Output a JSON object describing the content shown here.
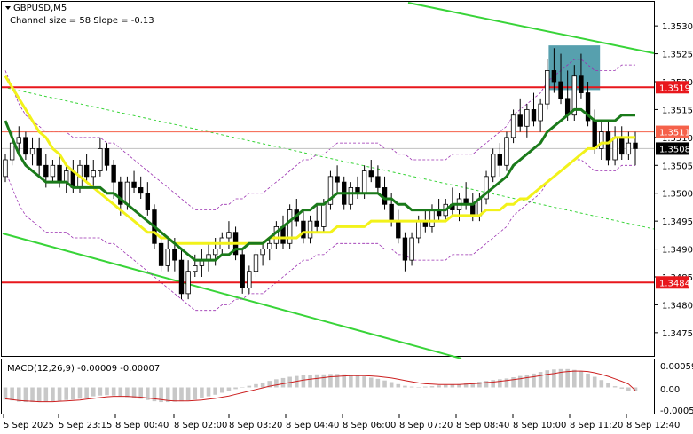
{
  "header": {
    "symbol_label": "GBPUSD,M5",
    "channel_info": "Channel size = 58 Slope = -0.13"
  },
  "macd": {
    "label": "MACD(12,26,9) -0.00009 -0.00007",
    "ticks": [
      "0.00059",
      "0.00",
      "-0.00059"
    ]
  },
  "price_axis": {
    "ticks": [
      "1.3530",
      "1.3525",
      "1.3520",
      "1.3515",
      "1.3510",
      "1.3505",
      "1.3500",
      "1.3495",
      "1.3490",
      "1.3485",
      "1.3480",
      "1.3475"
    ]
  },
  "time_axis": {
    "labels": [
      "5 Sep 2025",
      "5 Sep 23:15",
      "8 Sep 00:40",
      "8 Sep 02:00",
      "8 Sep 03:20",
      "8 Sep 04:40",
      "8 Sep 06:00",
      "8 Sep 07:20",
      "8 Sep 08:40",
      "8 Sep 10:00",
      "8 Sep 11:20",
      "8 Sep 12:40"
    ]
  },
  "level_tags": [
    {
      "id": "upper",
      "text": "1.3519",
      "color": "#e8171c"
    },
    {
      "id": "mid",
      "text": "1.3511",
      "color": "#f5614a"
    },
    {
      "id": "current",
      "text": "1.3508",
      "color": "#000000"
    },
    {
      "id": "lower",
      "text": "1.3484",
      "color": "#e8171c"
    }
  ],
  "colors": {
    "candle": "#000000",
    "ma_fast": "#1a7a1a",
    "ma_slow": "#f2f21a",
    "channel": "#38d438",
    "channel_mid": "#38d438",
    "envelope": "#9a2fb0",
    "level_red": "#e8171c",
    "level_orange": "#f5614a",
    "highlight": "#3a8fa0",
    "macd_hist": "#c8c8c8",
    "macd_signal": "#cc2020"
  },
  "chart_data": {
    "type": "candlestick",
    "symbol": "GBPUSD",
    "timeframe": "M5",
    "ylim": [
      1.3471,
      1.3534
    ],
    "levels": {
      "upper": 1.3519,
      "mid": 1.3511,
      "lower": 1.3484
    },
    "current_price": 1.3508,
    "candles": [
      [
        1.3503,
        1.3507,
        1.3502,
        1.3506
      ],
      [
        1.3506,
        1.3511,
        1.3505,
        1.3509
      ],
      [
        1.3509,
        1.3512,
        1.3507,
        1.351
      ],
      [
        1.351,
        1.3511,
        1.3506,
        1.3507
      ],
      [
        1.3507,
        1.351,
        1.3505,
        1.3508
      ],
      [
        1.3508,
        1.351,
        1.3503,
        1.3505
      ],
      [
        1.3505,
        1.3507,
        1.3501,
        1.3503
      ],
      [
        1.3503,
        1.3506,
        1.3502,
        1.3505
      ],
      [
        1.3505,
        1.3507,
        1.3501,
        1.3502
      ],
      [
        1.3502,
        1.3505,
        1.35,
        1.3504
      ],
      [
        1.3504,
        1.3506,
        1.35,
        1.3501
      ],
      [
        1.3501,
        1.3506,
        1.35,
        1.3505
      ],
      [
        1.3505,
        1.3507,
        1.3502,
        1.3503
      ],
      [
        1.3503,
        1.3506,
        1.3501,
        1.3504
      ],
      [
        1.3504,
        1.351,
        1.3503,
        1.3508
      ],
      [
        1.3508,
        1.3509,
        1.3504,
        1.3505
      ],
      [
        1.3505,
        1.3506,
        1.3499,
        1.3502
      ],
      [
        1.3502,
        1.3503,
        1.3496,
        1.3498
      ],
      [
        1.3498,
        1.3503,
        1.3497,
        1.3502
      ],
      [
        1.3502,
        1.3504,
        1.35,
        1.3501
      ],
      [
        1.3501,
        1.3503,
        1.3499,
        1.35
      ],
      [
        1.35,
        1.3502,
        1.3496,
        1.3497
      ],
      [
        1.3497,
        1.3498,
        1.349,
        1.3491
      ],
      [
        1.3491,
        1.3493,
        1.3486,
        1.3487
      ],
      [
        1.3487,
        1.3492,
        1.3486,
        1.349
      ],
      [
        1.349,
        1.3492,
        1.3486,
        1.3488
      ],
      [
        1.3488,
        1.349,
        1.3481,
        1.3482
      ],
      [
        1.3482,
        1.3488,
        1.3481,
        1.3486
      ],
      [
        1.3486,
        1.3489,
        1.3485,
        1.3487
      ],
      [
        1.3487,
        1.349,
        1.3485,
        1.3488
      ],
      [
        1.3488,
        1.3491,
        1.3486,
        1.3489
      ],
      [
        1.3489,
        1.3492,
        1.3487,
        1.349
      ],
      [
        1.349,
        1.3493,
        1.3489,
        1.3492
      ],
      [
        1.3492,
        1.3495,
        1.349,
        1.3493
      ],
      [
        1.3493,
        1.3494,
        1.3488,
        1.3489
      ],
      [
        1.3489,
        1.349,
        1.3482,
        1.3483
      ],
      [
        1.3483,
        1.3487,
        1.3482,
        1.3486
      ],
      [
        1.3486,
        1.349,
        1.3485,
        1.3489
      ],
      [
        1.3489,
        1.3491,
        1.3487,
        1.349
      ],
      [
        1.349,
        1.3492,
        1.3488,
        1.3491
      ],
      [
        1.3491,
        1.3495,
        1.349,
        1.3494
      ],
      [
        1.3494,
        1.3496,
        1.349,
        1.3491
      ],
      [
        1.3491,
        1.3498,
        1.349,
        1.3497
      ],
      [
        1.3497,
        1.3499,
        1.3494,
        1.3495
      ],
      [
        1.3495,
        1.3497,
        1.3491,
        1.3492
      ],
      [
        1.3492,
        1.3496,
        1.3491,
        1.3495
      ],
      [
        1.3495,
        1.3498,
        1.3493,
        1.3494
      ],
      [
        1.3494,
        1.3499,
        1.3493,
        1.3498
      ],
      [
        1.3498,
        1.3504,
        1.3497,
        1.3503
      ],
      [
        1.3503,
        1.3505,
        1.35,
        1.3502
      ],
      [
        1.3502,
        1.3503,
        1.3497,
        1.3498
      ],
      [
        1.3498,
        1.3502,
        1.3497,
        1.3501
      ],
      [
        1.3501,
        1.3503,
        1.3499,
        1.35
      ],
      [
        1.35,
        1.3505,
        1.3499,
        1.3504
      ],
      [
        1.3504,
        1.3506,
        1.3502,
        1.3503
      ],
      [
        1.3503,
        1.3505,
        1.35,
        1.3501
      ],
      [
        1.3501,
        1.3503,
        1.3497,
        1.3498
      ],
      [
        1.3498,
        1.35,
        1.3494,
        1.3495
      ],
      [
        1.3495,
        1.3497,
        1.3491,
        1.3492
      ],
      [
        1.3492,
        1.3493,
        1.3486,
        1.3488
      ],
      [
        1.3488,
        1.3493,
        1.3487,
        1.3492
      ],
      [
        1.3492,
        1.3496,
        1.3491,
        1.3495
      ],
      [
        1.3495,
        1.3497,
        1.3493,
        1.3494
      ],
      [
        1.3494,
        1.3498,
        1.3493,
        1.3497
      ],
      [
        1.3497,
        1.3499,
        1.3495,
        1.3496
      ],
      [
        1.3496,
        1.3499,
        1.3495,
        1.3498
      ],
      [
        1.3498,
        1.3501,
        1.3496,
        1.3497
      ],
      [
        1.3497,
        1.35,
        1.3495,
        1.3499
      ],
      [
        1.3499,
        1.3502,
        1.3497,
        1.3498
      ],
      [
        1.3498,
        1.35,
        1.3495,
        1.3496
      ],
      [
        1.3496,
        1.35,
        1.3495,
        1.3499
      ],
      [
        1.3499,
        1.3504,
        1.3498,
        1.3503
      ],
      [
        1.3503,
        1.3508,
        1.3502,
        1.3507
      ],
      [
        1.3507,
        1.3509,
        1.3503,
        1.3505
      ],
      [
        1.3505,
        1.3511,
        1.3504,
        1.351
      ],
      [
        1.351,
        1.3515,
        1.3509,
        1.3514
      ],
      [
        1.3514,
        1.3517,
        1.3511,
        1.3512
      ],
      [
        1.3512,
        1.3516,
        1.351,
        1.3515
      ],
      [
        1.3515,
        1.3518,
        1.3512,
        1.3513
      ],
      [
        1.3513,
        1.3517,
        1.3511,
        1.3516
      ],
      [
        1.3516,
        1.3524,
        1.3515,
        1.3522
      ],
      [
        1.3522,
        1.3526,
        1.3518,
        1.352
      ],
      [
        1.352,
        1.3525,
        1.3516,
        1.3517
      ],
      [
        1.3517,
        1.3522,
        1.3513,
        1.3514
      ],
      [
        1.3514,
        1.3523,
        1.3513,
        1.3521
      ],
      [
        1.3521,
        1.3525,
        1.3517,
        1.3518
      ],
      [
        1.3518,
        1.352,
        1.3512,
        1.3513
      ],
      [
        1.3513,
        1.3515,
        1.3507,
        1.3508
      ],
      [
        1.3508,
        1.3513,
        1.3506,
        1.3511
      ],
      [
        1.3511,
        1.3513,
        1.3505,
        1.3506
      ],
      [
        1.3506,
        1.3512,
        1.3505,
        1.351
      ],
      [
        1.351,
        1.3512,
        1.3506,
        1.3507
      ],
      [
        1.3507,
        1.3511,
        1.3506,
        1.3509
      ],
      [
        1.3509,
        1.3511,
        1.3505,
        1.3508
      ]
    ],
    "ma_fast": [
      1.3513,
      1.351,
      1.3507,
      1.3505,
      1.3504,
      1.3503,
      1.3502,
      1.3502,
      1.3502,
      1.3502,
      1.3501,
      1.3501,
      1.3501,
      1.3501,
      1.3501,
      1.35,
      1.35,
      1.3499,
      1.3498,
      1.3497,
      1.3496,
      1.3495,
      1.3494,
      1.3493,
      1.3492,
      1.3491,
      1.349,
      1.3489,
      1.3488,
      1.3488,
      1.3488,
      1.3488,
      1.3489,
      1.3489,
      1.349,
      1.349,
      1.3491,
      1.3491,
      1.3491,
      1.3492,
      1.3493,
      1.3494,
      1.3495,
      1.3496,
      1.3497,
      1.3497,
      1.3498,
      1.3498,
      1.3499,
      1.35,
      1.35,
      1.35,
      1.35,
      1.35,
      1.35,
      1.35,
      1.3499,
      1.3499,
      1.3498,
      1.3498,
      1.3497,
      1.3497,
      1.3497,
      1.3497,
      1.3497,
      1.3497,
      1.3498,
      1.3498,
      1.3498,
      1.3498,
      1.3499,
      1.35,
      1.3501,
      1.3502,
      1.3503,
      1.3505,
      1.3506,
      1.3507,
      1.3508,
      1.3509,
      1.3511,
      1.3512,
      1.3513,
      1.3514,
      1.3515,
      1.3515,
      1.3514,
      1.3513,
      1.3513,
      1.3513,
      1.3513,
      1.3514,
      1.3514,
      1.3514
    ],
    "ma_slow": [
      1.3521,
      1.3519,
      1.3517,
      1.3515,
      1.3513,
      1.3511,
      1.351,
      1.3508,
      1.3507,
      1.3505,
      1.3504,
      1.3503,
      1.3502,
      1.3501,
      1.35,
      1.3499,
      1.3498,
      1.3497,
      1.3496,
      1.3495,
      1.3494,
      1.3493,
      1.3493,
      1.3492,
      1.3492,
      1.3491,
      1.3491,
      1.3491,
      1.3491,
      1.3491,
      1.3491,
      1.3491,
      1.3491,
      1.3491,
      1.3491,
      1.3491,
      1.3491,
      1.3491,
      1.3491,
      1.3492,
      1.3492,
      1.3492,
      1.3492,
      1.3492,
      1.3493,
      1.3493,
      1.3493,
      1.3493,
      1.3493,
      1.3494,
      1.3494,
      1.3494,
      1.3494,
      1.3494,
      1.3495,
      1.3495,
      1.3495,
      1.3495,
      1.3495,
      1.3495,
      1.3495,
      1.3495,
      1.3495,
      1.3495,
      1.3495,
      1.3495,
      1.3496,
      1.3496,
      1.3496,
      1.3496,
      1.3496,
      1.3497,
      1.3497,
      1.3497,
      1.3498,
      1.3498,
      1.3499,
      1.3499,
      1.35,
      1.3501,
      1.3502,
      1.3503,
      1.3504,
      1.3505,
      1.3506,
      1.3507,
      1.3508,
      1.3508,
      1.3509,
      1.3509,
      1.351,
      1.351,
      1.351,
      1.351
    ],
    "macd_hist": [
      -0.0003,
      -0.00032,
      -0.00035,
      -0.00036,
      -0.00036,
      -0.00036,
      -0.00035,
      -0.00034,
      -0.00033,
      -0.00031,
      -0.0003,
      -0.00028,
      -0.00025,
      -0.00022,
      -0.0002,
      -0.00019,
      -0.0002,
      -0.00022,
      -0.00024,
      -0.00026,
      -0.00028,
      -0.00031,
      -0.00034,
      -0.00036,
      -0.00036,
      -0.00035,
      -0.00034,
      -0.00032,
      -0.0003,
      -0.00026,
      -0.00022,
      -0.00018,
      -0.00013,
      -8e-05,
      -4e-05,
      0.0,
      4e-05,
      8e-05,
      0.00012,
      0.00016,
      0.0002,
      0.00023,
      0.00026,
      0.00028,
      0.0003,
      0.00031,
      0.00032,
      0.00032,
      0.00033,
      0.00033,
      0.00032,
      0.00031,
      0.00029,
      0.00027,
      0.00024,
      0.00021,
      0.00017,
      0.00013,
      8e-05,
      4e-05,
      2e-05,
      1e-05,
      2e-05,
      3e-05,
      5e-05,
      6e-05,
      7e-05,
      8e-05,
      0.0001,
      0.00012,
      0.00014,
      0.00016,
      0.00018,
      0.0002,
      0.00022,
      0.00025,
      0.00028,
      0.00031,
      0.00034,
      0.00038,
      0.00042,
      0.00044,
      0.00045,
      0.00045,
      0.00043,
      0.0004,
      0.00034,
      0.00026,
      0.00018,
      0.0001,
      3e-05,
      -3e-05,
      -8e-05,
      -9e-05
    ],
    "macd_signal": [
      -0.00028,
      -0.0003,
      -0.00032,
      -0.00033,
      -0.00034,
      -0.00035,
      -0.00035,
      -0.00035,
      -0.00034,
      -0.00033,
      -0.00032,
      -0.00031,
      -0.00029,
      -0.00027,
      -0.00025,
      -0.00023,
      -0.00022,
      -0.00022,
      -0.00022,
      -0.00023,
      -0.00024,
      -0.00026,
      -0.00028,
      -0.0003,
      -0.00032,
      -0.00033,
      -0.00033,
      -0.00033,
      -0.00032,
      -0.00031,
      -0.00029,
      -0.00027,
      -0.00024,
      -0.00021,
      -0.00017,
      -0.00013,
      -9e-05,
      -5e-05,
      -1e-05,
      3e-05,
      6e-05,
      9e-05,
      0.00012,
      0.00015,
      0.00018,
      0.0002,
      0.00022,
      0.00024,
      0.00026,
      0.00027,
      0.00028,
      0.00029,
      0.00029,
      0.00029,
      0.00028,
      0.00027,
      0.00025,
      0.00023,
      0.0002,
      0.00017,
      0.00014,
      0.00011,
      9e-05,
      8e-05,
      7e-05,
      7e-05,
      7e-05,
      7e-05,
      8e-05,
      9e-05,
      0.0001,
      0.00012,
      0.00013,
      0.00015,
      0.00017,
      0.00019,
      0.00021,
      0.00024,
      0.00026,
      0.00029,
      0.00032,
      0.00034,
      0.00037,
      0.00039,
      0.0004,
      0.0004,
      0.00039,
      0.00036,
      0.00032,
      0.00027,
      0.00021,
      0.00015,
      8e-05,
      -7e-05
    ]
  }
}
